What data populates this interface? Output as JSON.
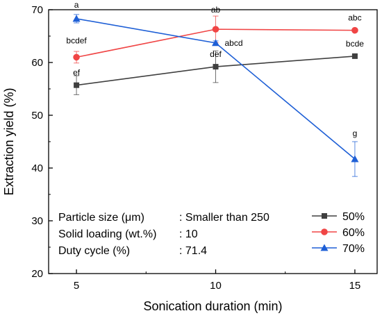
{
  "chart_data": {
    "type": "line",
    "xlabel": "Sonication duration (min)",
    "ylabel": "Extraction yield (%)",
    "xlim": [
      4.0,
      15.8
    ],
    "ylim": [
      20,
      70
    ],
    "x_ticks": [
      5,
      10,
      15
    ],
    "y_ticks": [
      20,
      30,
      40,
      50,
      60,
      70
    ],
    "x": [
      5,
      10,
      15
    ],
    "series": [
      {
        "name": "50%",
        "color": "#3f3f3f",
        "marker": "square",
        "values": [
          55.7,
          59.2,
          61.2
        ],
        "errors": [
          1.8,
          3.0,
          0.3
        ],
        "labels": [
          "ef",
          "def",
          "bcde"
        ]
      },
      {
        "name": "60%",
        "color": "#f04545",
        "marker": "circle",
        "values": [
          61.0,
          66.3,
          66.1
        ],
        "errors": [
          1.1,
          2.5,
          0.3
        ],
        "labels": [
          "bcdef",
          "ab",
          "abc"
        ]
      },
      {
        "name": "70%",
        "color": "#1e5fd6",
        "marker": "triangle",
        "values": [
          68.3,
          63.7,
          41.7
        ],
        "errors": [
          0.8,
          0.4,
          3.3
        ],
        "labels": [
          "a",
          "abcd",
          "g"
        ]
      }
    ],
    "info": {
      "rows": [
        {
          "key": "Particle size (μm)",
          "value": ": Smaller than 250"
        },
        {
          "key": "Solid loading (wt.%)",
          "value": ": 10"
        },
        {
          "key": "Duty cycle (%)",
          "value": ": 71.4"
        }
      ]
    },
    "legend_position": "bottom-right"
  }
}
